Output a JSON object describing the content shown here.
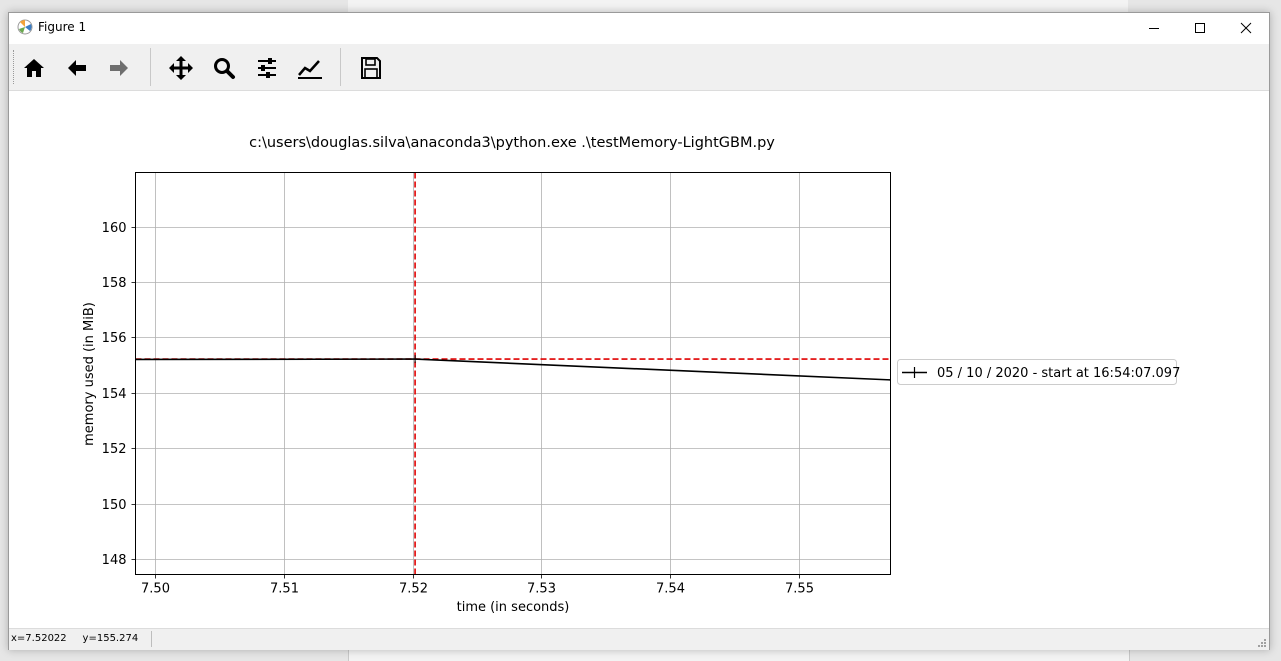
{
  "window": {
    "title": "Figure 1",
    "controls": [
      "minimize",
      "maximize",
      "close"
    ]
  },
  "toolbar": {
    "tools": [
      {
        "name": "home-icon",
        "label": "Home"
      },
      {
        "name": "back-icon",
        "label": "Back"
      },
      {
        "name": "forward-icon",
        "label": "Forward"
      },
      {
        "name": "pan-icon",
        "label": "Pan"
      },
      {
        "name": "zoom-icon",
        "label": "Zoom"
      },
      {
        "name": "subplots-icon",
        "label": "Subplots"
      },
      {
        "name": "customize-icon",
        "label": "Customize"
      },
      {
        "name": "save-icon",
        "label": "Save"
      }
    ]
  },
  "status": {
    "coords": "x=7.52022     y=155.274"
  },
  "chart_data": {
    "type": "line",
    "title": "c:\\users\\douglas.silva\\anaconda3\\python.exe .\\testMemory-LightGBM.py",
    "xlabel": "time (in seconds)",
    "ylabel": "memory used (in MiB)",
    "xlim": [
      7.4985,
      7.5571
    ],
    "ylim": [
      147.45,
      161.95
    ],
    "xticks": [
      7.5,
      7.51,
      7.52,
      7.53,
      7.54,
      7.55
    ],
    "xtick_labels": [
      "7.50",
      "7.51",
      "7.52",
      "7.53",
      "7.54",
      "7.55"
    ],
    "yticks": [
      148,
      150,
      152,
      154,
      156,
      158,
      160
    ],
    "ytick_labels": [
      "148",
      "150",
      "152",
      "154",
      "156",
      "158",
      "160"
    ],
    "grid": true,
    "series": [
      {
        "name": "05 / 10 / 2020 - start at 16:54:07.097",
        "color": "#000000",
        "marker": "+",
        "x": [
          7.4985,
          7.5202,
          7.5571
        ],
        "y": [
          155.21,
          155.22,
          154.47
        ]
      }
    ],
    "reference_lines": {
      "vertical_x": 7.5202,
      "horizontal_y": 155.22,
      "color": "#e00000",
      "style": "dashed"
    },
    "legend": "outside-right"
  }
}
